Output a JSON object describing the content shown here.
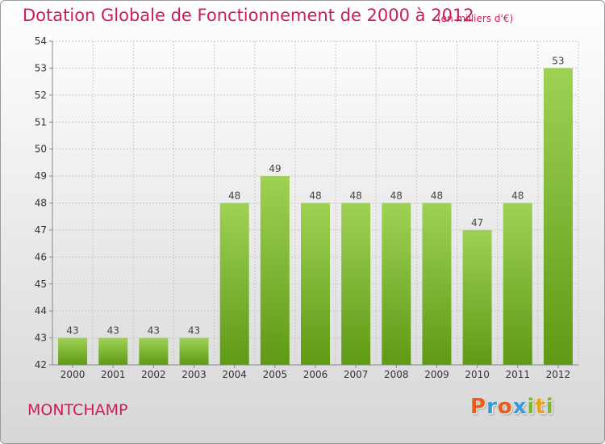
{
  "header": {
    "title": "Dotation Globale de Fonctionnement de 2000 à 2012",
    "subtitle": "(en milliers d'€)"
  },
  "footer": {
    "commune": "MONTCHAMP",
    "logo": "Proxiti",
    "logo_letters": [
      {
        "ch": "P",
        "color": "#e85d1c"
      },
      {
        "ch": "r",
        "color": "#3a9ad9"
      },
      {
        "ch": "o",
        "color": "#e85d1c"
      },
      {
        "ch": "x",
        "color": "#3a9ad9"
      },
      {
        "ch": "i",
        "color": "#7cb82f"
      },
      {
        "ch": "t",
        "color": "#e8a21c"
      },
      {
        "ch": "i",
        "color": "#7cb82f"
      }
    ]
  },
  "colors": {
    "bar_light": "#9fd154",
    "bar_dark": "#5e9a16",
    "accent_text": "#d01a5e",
    "axis": "#888888",
    "grid": "#c8c8c8"
  },
  "chart_data": {
    "type": "bar",
    "title": "Dotation Globale de Fonctionnement de 2000 à 2012",
    "subtitle": "(en milliers d'€)",
    "categories": [
      "2000",
      "2001",
      "2002",
      "2003",
      "2004",
      "2005",
      "2006",
      "2007",
      "2008",
      "2009",
      "2010",
      "2011",
      "2012"
    ],
    "values": [
      43,
      43,
      43,
      43,
      48,
      49,
      48,
      48,
      48,
      48,
      47,
      48,
      53
    ],
    "ylim": [
      42,
      54
    ],
    "yticks": [
      42,
      43,
      44,
      45,
      46,
      47,
      48,
      49,
      50,
      51,
      52,
      53,
      54
    ],
    "grid": true,
    "data_labels": true
  }
}
